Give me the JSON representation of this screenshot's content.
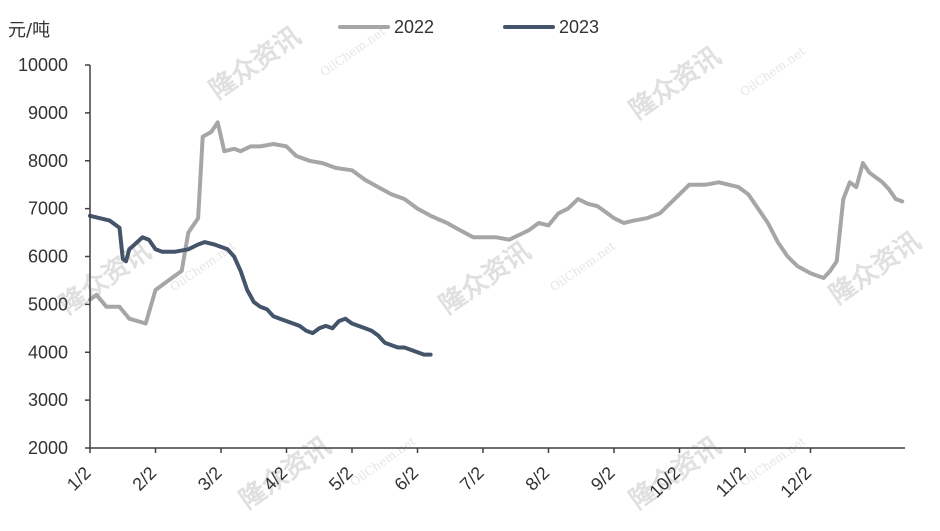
{
  "chart_data": {
    "type": "line",
    "ylabel": "元/吨",
    "ylim": [
      2000,
      10000
    ],
    "y_ticks": [
      2000,
      3000,
      4000,
      5000,
      6000,
      7000,
      8000,
      9000,
      10000
    ],
    "x_ticks": [
      "1/2",
      "2/2",
      "3/2",
      "4/2",
      "5/2",
      "6/2",
      "7/2",
      "8/2",
      "9/2",
      "10/2",
      "11/2",
      "12/2"
    ],
    "legend_position": "top-center",
    "grid": false,
    "series": [
      {
        "name": "2022",
        "color": "#a6a6a6",
        "points": [
          [
            0,
            5100
          ],
          [
            0.1,
            5200
          ],
          [
            0.25,
            4950
          ],
          [
            0.45,
            4950
          ],
          [
            0.6,
            4700
          ],
          [
            0.85,
            4600
          ],
          [
            1.0,
            5300
          ],
          [
            1.2,
            5500
          ],
          [
            1.4,
            5700
          ],
          [
            1.5,
            6500
          ],
          [
            1.65,
            6800
          ],
          [
            1.72,
            8500
          ],
          [
            1.85,
            8600
          ],
          [
            1.95,
            8800
          ],
          [
            2.05,
            8200
          ],
          [
            2.2,
            8250
          ],
          [
            2.3,
            8200
          ],
          [
            2.45,
            8300
          ],
          [
            2.6,
            8300
          ],
          [
            2.8,
            8350
          ],
          [
            3.0,
            8300
          ],
          [
            3.15,
            8100
          ],
          [
            3.35,
            8000
          ],
          [
            3.55,
            7950
          ],
          [
            3.75,
            7850
          ],
          [
            4.0,
            7800
          ],
          [
            4.2,
            7600
          ],
          [
            4.4,
            7450
          ],
          [
            4.6,
            7300
          ],
          [
            4.8,
            7200
          ],
          [
            5.0,
            7000
          ],
          [
            5.2,
            6850
          ],
          [
            5.45,
            6700
          ],
          [
            5.65,
            6550
          ],
          [
            5.85,
            6400
          ],
          [
            6.0,
            6400
          ],
          [
            6.2,
            6400
          ],
          [
            6.4,
            6350
          ],
          [
            6.55,
            6450
          ],
          [
            6.7,
            6550
          ],
          [
            6.85,
            6700
          ],
          [
            7.0,
            6650
          ],
          [
            7.15,
            6900
          ],
          [
            7.3,
            7000
          ],
          [
            7.45,
            7200
          ],
          [
            7.6,
            7100
          ],
          [
            7.75,
            7050
          ],
          [
            7.9,
            6900
          ],
          [
            8.0,
            6800
          ],
          [
            8.15,
            6700
          ],
          [
            8.3,
            6750
          ],
          [
            8.5,
            6800
          ],
          [
            8.7,
            6900
          ],
          [
            8.85,
            7100
          ],
          [
            9.0,
            7300
          ],
          [
            9.15,
            7500
          ],
          [
            9.4,
            7500
          ],
          [
            9.6,
            7550
          ],
          [
            9.75,
            7500
          ],
          [
            9.9,
            7450
          ],
          [
            10.05,
            7300
          ],
          [
            10.2,
            7000
          ],
          [
            10.35,
            6700
          ],
          [
            10.5,
            6300
          ],
          [
            10.65,
            6000
          ],
          [
            10.8,
            5800
          ],
          [
            11.0,
            5650
          ],
          [
            11.2,
            5550
          ],
          [
            11.3,
            5700
          ],
          [
            11.4,
            5900
          ],
          [
            11.5,
            7200
          ],
          [
            11.6,
            7550
          ],
          [
            11.7,
            7450
          ],
          [
            11.8,
            7950
          ],
          [
            11.9,
            7750
          ],
          [
            12.0,
            7650
          ],
          [
            12.1,
            7550
          ],
          [
            12.2,
            7400
          ],
          [
            12.3,
            7200
          ],
          [
            12.4,
            7150
          ]
        ]
      },
      {
        "name": "2023",
        "color": "#44546a",
        "points": [
          [
            0,
            6850
          ],
          [
            0.15,
            6800
          ],
          [
            0.3,
            6750
          ],
          [
            0.4,
            6650
          ],
          [
            0.45,
            6600
          ],
          [
            0.5,
            5950
          ],
          [
            0.55,
            5900
          ],
          [
            0.6,
            6150
          ],
          [
            0.72,
            6300
          ],
          [
            0.8,
            6400
          ],
          [
            0.9,
            6350
          ],
          [
            1.0,
            6150
          ],
          [
            1.1,
            6100
          ],
          [
            1.3,
            6100
          ],
          [
            1.5,
            6150
          ],
          [
            1.65,
            6250
          ],
          [
            1.75,
            6300
          ],
          [
            1.9,
            6250
          ],
          [
            2.0,
            6200
          ],
          [
            2.1,
            6150
          ],
          [
            2.2,
            6000
          ],
          [
            2.3,
            5700
          ],
          [
            2.4,
            5300
          ],
          [
            2.5,
            5050
          ],
          [
            2.6,
            4950
          ],
          [
            2.7,
            4900
          ],
          [
            2.8,
            4750
          ],
          [
            2.9,
            4700
          ],
          [
            3.0,
            4650
          ],
          [
            3.1,
            4600
          ],
          [
            3.2,
            4550
          ],
          [
            3.3,
            4450
          ],
          [
            3.4,
            4400
          ],
          [
            3.5,
            4500
          ],
          [
            3.6,
            4550
          ],
          [
            3.7,
            4500
          ],
          [
            3.8,
            4650
          ],
          [
            3.9,
            4700
          ],
          [
            4.0,
            4600
          ],
          [
            4.1,
            4550
          ],
          [
            4.2,
            4500
          ],
          [
            4.3,
            4450
          ],
          [
            4.4,
            4350
          ],
          [
            4.5,
            4200
          ],
          [
            4.6,
            4150
          ],
          [
            4.7,
            4100
          ],
          [
            4.8,
            4100
          ],
          [
            4.9,
            4050
          ],
          [
            5.0,
            4000
          ],
          [
            5.1,
            3950
          ],
          [
            5.2,
            3950
          ]
        ]
      }
    ]
  },
  "watermarks": {
    "cn": "隆众资讯",
    "en": "OilChem.net"
  }
}
